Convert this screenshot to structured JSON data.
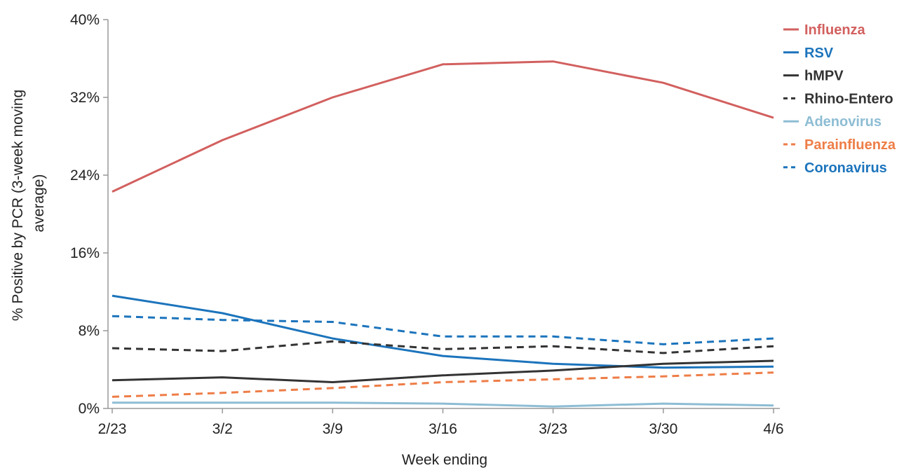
{
  "chart_data": {
    "type": "line",
    "title": "",
    "xlabel": "Week ending",
    "ylabel_lines": [
      "% Positive by PCR (3-week moving",
      "average)"
    ],
    "categories": [
      "2/23",
      "3/2",
      "3/9",
      "3/16",
      "3/23",
      "3/30",
      "4/6"
    ],
    "ylim": [
      0,
      40
    ],
    "yticks": [
      0,
      8,
      16,
      24,
      32,
      40
    ],
    "ytick_labels": [
      "0%",
      "8%",
      "16%",
      "24%",
      "32%",
      "40%"
    ],
    "grid": false,
    "legend_position": "top-right",
    "series": [
      {
        "name": "Influenza",
        "color": "#d2605f",
        "dash": false,
        "values": [
          22.3,
          27.6,
          32.0,
          35.4,
          35.7,
          33.5,
          29.9
        ]
      },
      {
        "name": "RSV",
        "color": "#1c74bc",
        "dash": false,
        "values": [
          11.6,
          9.8,
          7.2,
          5.4,
          4.6,
          4.2,
          4.3
        ]
      },
      {
        "name": "hMPV",
        "color": "#333333",
        "dash": false,
        "values": [
          2.9,
          3.2,
          2.7,
          3.4,
          3.9,
          4.6,
          4.9
        ]
      },
      {
        "name": "Rhino-Entero",
        "color": "#333333",
        "dash": true,
        "values": [
          6.2,
          5.9,
          6.9,
          6.1,
          6.4,
          5.7,
          6.4
        ]
      },
      {
        "name": "Adenovirus",
        "color": "#8dbdd4",
        "dash": false,
        "values": [
          0.6,
          0.6,
          0.6,
          0.5,
          0.2,
          0.5,
          0.3
        ]
      },
      {
        "name": "Parainfluenza",
        "color": "#ee7d47",
        "dash": true,
        "values": [
          1.2,
          1.6,
          2.1,
          2.7,
          3.0,
          3.3,
          3.7
        ]
      },
      {
        "name": "Coronavirus",
        "color": "#1c74bc",
        "dash": true,
        "values": [
          9.5,
          9.1,
          8.9,
          7.4,
          7.4,
          6.6,
          7.2
        ]
      }
    ]
  }
}
